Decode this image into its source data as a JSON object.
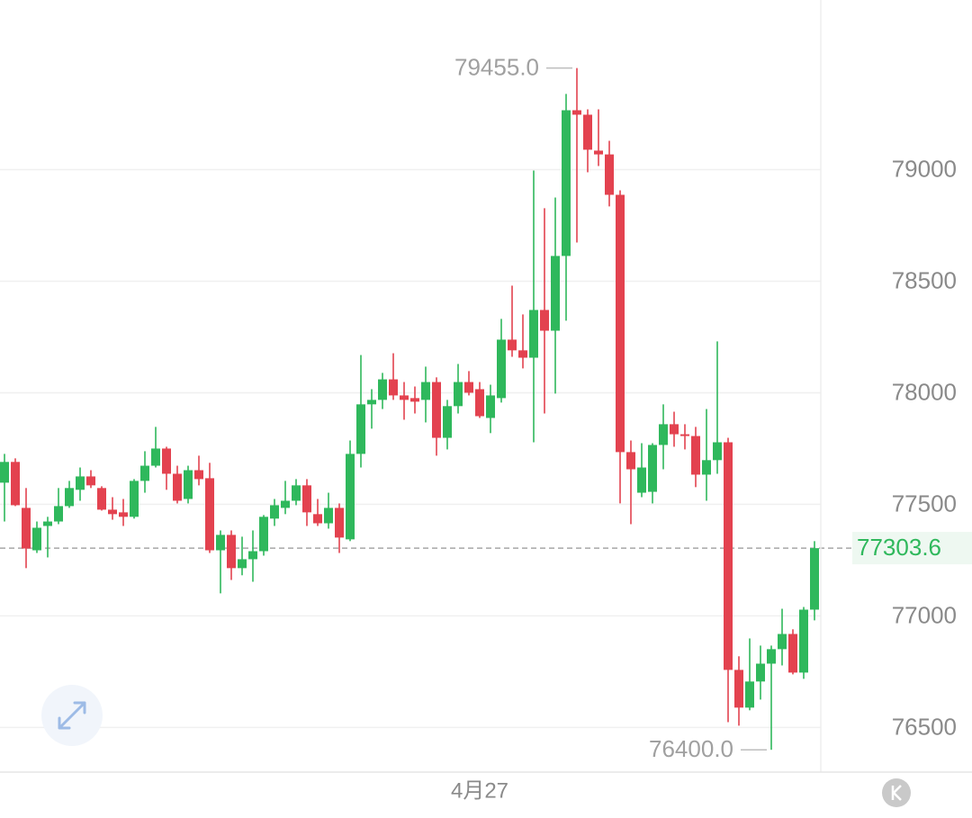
{
  "chart_data": {
    "type": "candlestick",
    "categories": [
      null,
      null,
      null,
      null,
      null,
      null,
      null,
      null,
      null,
      null,
      null,
      null,
      null,
      null,
      null,
      null,
      null,
      null,
      null,
      null,
      null,
      null,
      null,
      null,
      null,
      null,
      null,
      null,
      null,
      null,
      null,
      null,
      null,
      null,
      null,
      null,
      null,
      null,
      null,
      null,
      null,
      null,
      null,
      null,
      "4月27",
      null,
      null,
      null,
      null,
      null,
      null,
      null,
      null,
      null,
      null,
      null,
      null,
      null,
      null,
      null,
      null,
      null,
      null,
      null,
      null,
      null,
      null,
      null,
      null,
      null,
      null,
      null,
      null,
      null,
      null,
      null
    ],
    "open": [
      77597,
      77690,
      77484,
      77294,
      77403,
      77423,
      77492,
      77565,
      77625,
      77573,
      77476,
      77464,
      77444,
      77605,
      77673,
      77750,
      77637,
      77524,
      77653,
      77617,
      77294,
      77363,
      77214,
      77254,
      77290,
      77436,
      77484,
      77516,
      77585,
      77456,
      77415,
      77484,
      77343,
      77726,
      77948,
      77968,
      78060,
      77988,
      77976,
      77968,
      78048,
      77798,
      77940,
      78048,
      78016,
      77887,
      77976,
      78238,
      78190,
      78157,
      78371,
      78278,
      78613,
      79266,
      79246,
      79085,
      79068,
      78887,
      77734,
      77552,
      77556,
      77766,
      77859,
      77814,
      77806,
      77633,
      77698,
      77778,
      76758,
      76589,
      76706,
      76786,
      76851,
      76919,
      76746,
      77028
    ],
    "high": [
      77726,
      77706,
      77573,
      77423,
      77444,
      77573,
      77605,
      77665,
      77653,
      77581,
      77532,
      77524,
      77613,
      77738,
      77847,
      77758,
      77673,
      77673,
      77718,
      77686,
      77383,
      77383,
      77355,
      77383,
      77452,
      77524,
      77605,
      77613,
      77613,
      77524,
      77552,
      77504,
      77786,
      78169,
      78016,
      78089,
      78177,
      78048,
      78028,
      78117,
      78069,
      77968,
      78129,
      78097,
      78048,
      78036,
      78331,
      78480,
      78351,
      78996,
      78827,
      78875,
      79339,
      79455,
      79270,
      79270,
      79129,
      78907,
      77786,
      77774,
      77774,
      77948,
      77915,
      77859,
      77847,
      77927,
      78230,
      77798,
      76819,
      76899,
      76867,
      76867,
      77032,
      76940,
      77040,
      77335
    ],
    "low": [
      77423,
      77492,
      77214,
      77282,
      77262,
      77411,
      77484,
      77516,
      77573,
      77472,
      77431,
      77403,
      77436,
      77552,
      77665,
      77565,
      77504,
      77504,
      77585,
      77282,
      77101,
      77161,
      77182,
      77153,
      77270,
      77403,
      77456,
      77496,
      77403,
      77403,
      77391,
      77282,
      77335,
      77665,
      77839,
      77927,
      77968,
      77879,
      77907,
      77867,
      77718,
      77746,
      77907,
      77988,
      77887,
      77819,
      77956,
      78161,
      78109,
      77778,
      77907,
      77996,
      78323,
      78673,
      78988,
      79016,
      78835,
      77504,
      77411,
      77532,
      77504,
      77657,
      77758,
      77746,
      77577,
      77516,
      77637,
      76524,
      76508,
      76577,
      76625,
      76400,
      76778,
      76738,
      76718,
      76980
    ],
    "close": [
      77690,
      77496,
      77302,
      77395,
      77423,
      77492,
      77573,
      77625,
      77585,
      77476,
      77456,
      77444,
      77605,
      77673,
      77750,
      77637,
      77516,
      77653,
      77613,
      77294,
      77363,
      77214,
      77254,
      77290,
      77444,
      77496,
      77516,
      77585,
      77464,
      77415,
      77484,
      77351,
      77726,
      77948,
      77968,
      78060,
      77988,
      77968,
      77960,
      78048,
      77798,
      77940,
      78048,
      78000,
      77895,
      77988,
      78238,
      78190,
      78157,
      78371,
      78278,
      78613,
      79266,
      79246,
      79089,
      79068,
      78887,
      77734,
      77657,
      77665,
      77766,
      77859,
      77814,
      77806,
      77633,
      77698,
      77778,
      76758,
      76589,
      76706,
      76786,
      76851,
      76919,
      76746,
      77028,
      77303.6
    ],
    "up_color": "#2fb85c",
    "down_color": "#e3424f",
    "annotations": [
      {
        "value": 79455,
        "label": "79455.0"
      },
      {
        "value": 76400,
        "label": "76400.0"
      }
    ],
    "ylim": [
      76300,
      79760
    ],
    "yticks": [
      76500,
      77000,
      77500,
      78000,
      78500,
      79000
    ],
    "grid": true
  }
}
